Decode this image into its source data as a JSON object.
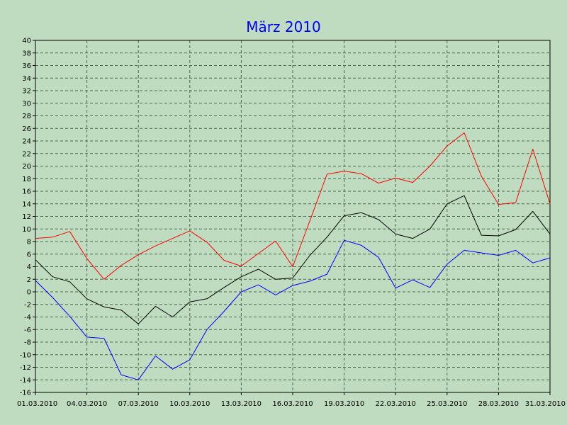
{
  "chart_data": {
    "type": "line",
    "title": "März 2010",
    "xlabel": "",
    "ylabel": "",
    "ylim": [
      -16,
      40
    ],
    "yticks": [
      40,
      38,
      36,
      34,
      32,
      30,
      28,
      26,
      24,
      22,
      20,
      18,
      16,
      14,
      12,
      10,
      8,
      6,
      4,
      2,
      0,
      -2,
      -4,
      -6,
      -8,
      -10,
      -12,
      -14,
      -16
    ],
    "x": [
      "01.03.2010",
      "02.03.2010",
      "03.03.2010",
      "04.03.2010",
      "05.03.2010",
      "06.03.2010",
      "07.03.2010",
      "08.03.2010",
      "09.03.2010",
      "10.03.2010",
      "11.03.2010",
      "12.03.2010",
      "13.03.2010",
      "14.03.2010",
      "15.03.2010",
      "16.03.2010",
      "17.03.2010",
      "18.03.2010",
      "19.03.2010",
      "20.03.2010",
      "21.03.2010",
      "22.03.2010",
      "23.03.2010",
      "24.03.2010",
      "25.03.2010",
      "26.03.2010",
      "27.03.2010",
      "28.03.2010",
      "29.03.2010",
      "30.03.2010",
      "31.03.2010"
    ],
    "xticks": [
      "01.03.2010",
      "04.03.2010",
      "07.03.2010",
      "10.03.2010",
      "13.03.2010",
      "16.03.2010",
      "19.03.2010",
      "22.03.2010",
      "25.03.2010",
      "28.03.2010",
      "31.03.2010"
    ],
    "grid": true,
    "series": [
      {
        "color": "#ff0000",
        "values": [
          8.5,
          8.7,
          9.6,
          5.3,
          2.0,
          4.2,
          5.9,
          7.3,
          8.5,
          9.7,
          7.9,
          5.0,
          4.1,
          6.1,
          8.1,
          4.0,
          11.3,
          18.7,
          19.2,
          18.8,
          17.3,
          18.1,
          17.4,
          20.0,
          23.2,
          25.3,
          18.4,
          13.9,
          14.2,
          22.7,
          14.0
        ]
      },
      {
        "color": "#000000",
        "values": [
          5.1,
          2.4,
          1.6,
          -1.1,
          -2.4,
          -2.9,
          -5.1,
          -2.3,
          -4.0,
          -1.6,
          -1.1,
          0.7,
          2.4,
          3.6,
          2.0,
          2.2,
          5.8,
          8.7,
          12.1,
          12.6,
          11.5,
          9.2,
          8.5,
          10.0,
          14.0,
          15.3,
          9.0,
          8.9,
          9.9,
          12.8,
          9.2
        ]
      },
      {
        "color": "#0000ff",
        "values": [
          1.8,
          -0.9,
          -3.9,
          -7.2,
          -7.4,
          -13.2,
          -14.0,
          -10.2,
          -12.3,
          -10.8,
          -6.0,
          -3.1,
          0.0,
          1.1,
          -0.5,
          1.0,
          1.7,
          2.8,
          8.2,
          7.4,
          5.5,
          0.6,
          1.9,
          0.7,
          4.4,
          6.6,
          6.2,
          5.8,
          6.6,
          4.6,
          5.4
        ]
      }
    ],
    "colors": {
      "background": "#c0dcc0",
      "plot_area": "#c0dcc0",
      "grid": "#4a6a4a",
      "title": "#0000ff",
      "axis": "#000000"
    }
  }
}
